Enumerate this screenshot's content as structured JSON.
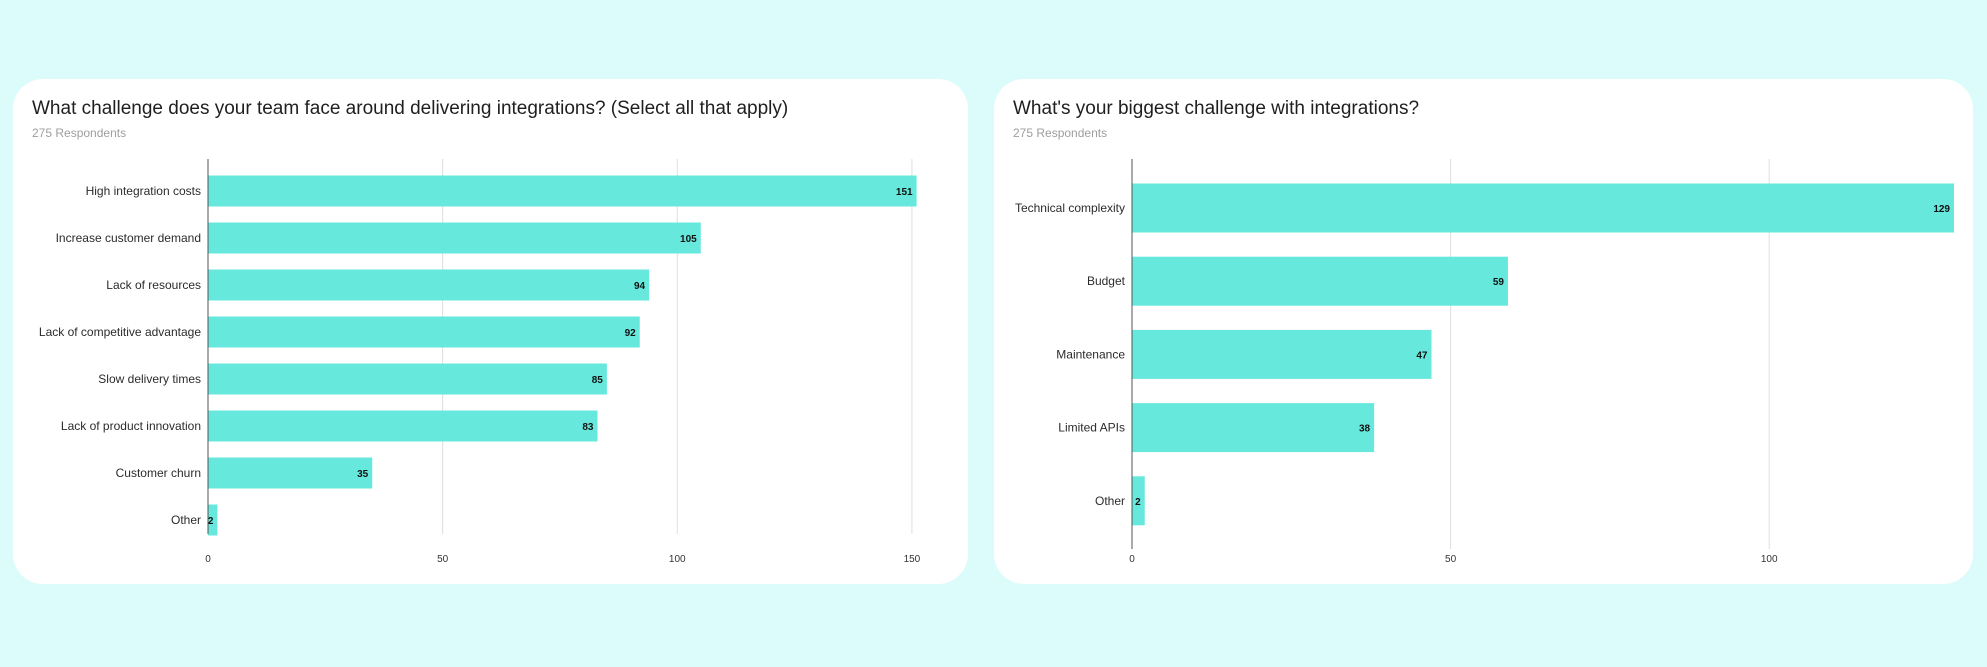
{
  "chart_data": [
    {
      "type": "bar",
      "orientation": "horizontal",
      "title": "What challenge does your team face around delivering integrations? (Select all that apply)",
      "subtitle": "275 Respondents",
      "categories": [
        "High integration costs",
        "Increase customer demand",
        "Lack of resources",
        "Lack of competitive advantage",
        "Slow delivery times",
        "Lack of product innovation",
        "Customer churn",
        "Other"
      ],
      "values": [
        151,
        105,
        94,
        92,
        85,
        83,
        35,
        2
      ],
      "xlim": [
        0,
        153
      ],
      "xticks": [
        0,
        50,
        100,
        150
      ],
      "grid": true,
      "bar_color": "#67e8dc"
    },
    {
      "type": "bar",
      "orientation": "horizontal",
      "title": "What's your biggest challenge with integrations?",
      "subtitle": "275 Respondents",
      "categories": [
        "Technical complexity",
        "Budget",
        "Maintenance",
        "Limited APIs",
        "Other"
      ],
      "values": [
        129,
        59,
        47,
        38,
        2
      ],
      "xlim": [
        0,
        129
      ],
      "xticks": [
        0,
        50,
        100
      ],
      "grid": true,
      "bar_color": "#67e8dc"
    }
  ]
}
